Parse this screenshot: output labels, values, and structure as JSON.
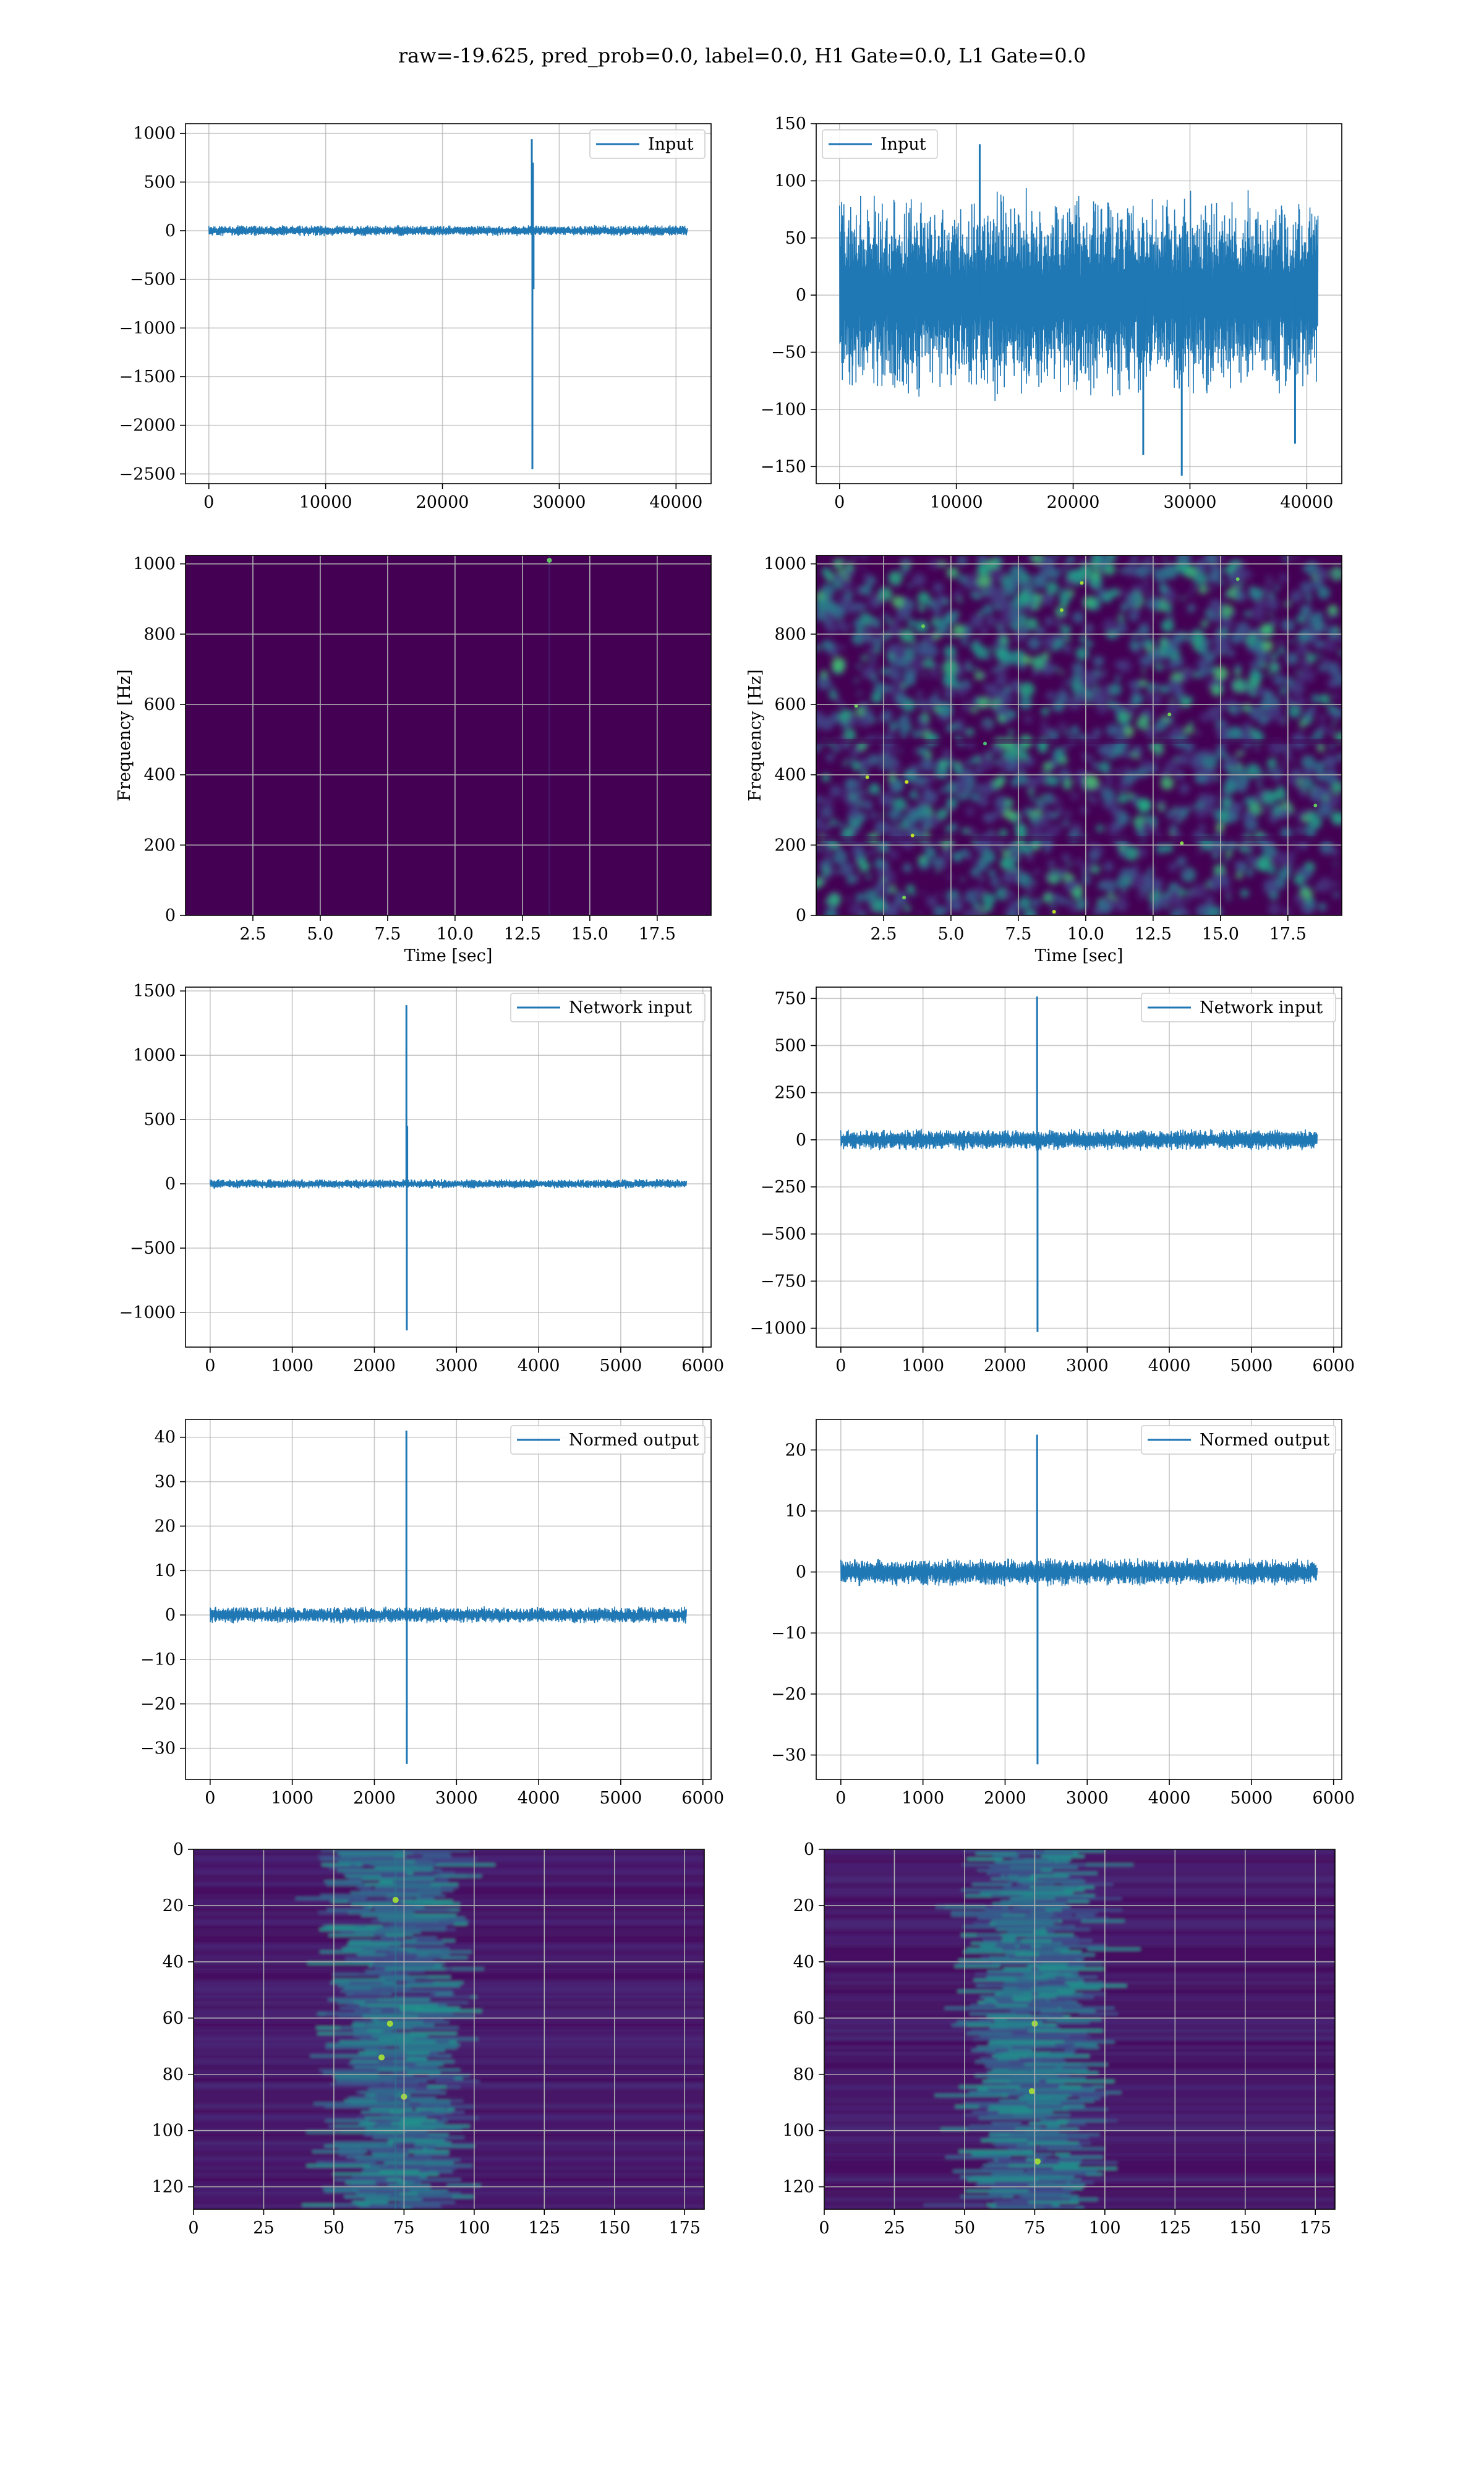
{
  "figure": {
    "title": "raw=-19.625, pred_prob=0.0, label=0.0, H1 Gate=0.0, L1 Gate=0.0"
  },
  "colors": {
    "series_blue": "#1f77b4",
    "grid": "#b0b0b0",
    "viridis_dark": "#440154",
    "viridis_mid": "#21918c",
    "viridis_bright": "#5ec962"
  },
  "chart_data": [
    {
      "type": "line",
      "id": "h1-input",
      "title": "",
      "xlabel": "",
      "ylabel": "",
      "xlim": [
        -2000,
        43000
      ],
      "ylim": [
        -2600,
        1100
      ],
      "xticks": [
        0,
        10000,
        20000,
        30000,
        40000
      ],
      "yticks": [
        1000,
        500,
        0,
        -500,
        -1000,
        -1500,
        -2000,
        -2500
      ],
      "legend": "top-right",
      "series": [
        {
          "name": "Input",
          "noise_amp": 60,
          "x_range": [
            0,
            40960
          ],
          "spikes": [
            {
              "x": 27650,
              "y": 940
            },
            {
              "x": 27700,
              "y": -2450
            },
            {
              "x": 27750,
              "y": 700
            },
            {
              "x": 27800,
              "y": -600
            }
          ]
        }
      ]
    },
    {
      "type": "line",
      "id": "l1-input",
      "title": "",
      "xlabel": "",
      "ylabel": "",
      "xlim": [
        -2000,
        43000
      ],
      "ylim": [
        -165,
        150
      ],
      "xticks": [
        0,
        10000,
        20000,
        30000,
        40000
      ],
      "yticks": [
        150,
        100,
        50,
        0,
        -50,
        -100,
        -150
      ],
      "legend": "top-left",
      "series": [
        {
          "name": "Input",
          "noise_amp": 95,
          "x_range": [
            0,
            40960
          ],
          "spikes": [
            {
              "x": 29300,
              "y": -158
            },
            {
              "x": 12000,
              "y": 132
            },
            {
              "x": 26000,
              "y": -140
            },
            {
              "x": 39000,
              "y": -130
            }
          ]
        }
      ]
    },
    {
      "type": "heatmap",
      "id": "h1-spectrogram",
      "title": "",
      "xlabel": "Time [sec]",
      "ylabel": "Frequency [Hz]",
      "xlim": [
        0,
        19.5
      ],
      "ylim": [
        0,
        1024
      ],
      "xticks": [
        2.5,
        5.0,
        7.5,
        10.0,
        12.5,
        15.0,
        17.5
      ],
      "yticks": [
        0,
        200,
        400,
        600,
        800,
        1000
      ],
      "texture": "flat",
      "hot_spots": [
        {
          "x": 13.5,
          "y": 1010
        }
      ]
    },
    {
      "type": "heatmap",
      "id": "l1-spectrogram",
      "title": "",
      "xlabel": "Time [sec]",
      "ylabel": "Frequency [Hz]",
      "xlim": [
        0,
        19.5
      ],
      "ylim": [
        0,
        1024
      ],
      "xticks": [
        2.5,
        5.0,
        7.5,
        10.0,
        12.5,
        15.0,
        17.5
      ],
      "yticks": [
        0,
        200,
        400,
        600,
        800,
        1000
      ],
      "texture": "noisy",
      "hot_spots": []
    },
    {
      "type": "line",
      "id": "h1-network-input",
      "title": "",
      "xlabel": "",
      "ylabel": "",
      "xlim": [
        -300,
        6100
      ],
      "ylim": [
        -1270,
        1530
      ],
      "xticks": [
        0,
        1000,
        2000,
        3000,
        4000,
        5000,
        6000
      ],
      "yticks": [
        1500,
        1000,
        500,
        0,
        -500,
        -1000
      ],
      "legend": "top-right",
      "series": [
        {
          "name": "Network input",
          "noise_amp": 40,
          "x_range": [
            0,
            5800
          ],
          "spikes": [
            {
              "x": 2390,
              "y": 1390
            },
            {
              "x": 2395,
              "y": -1140
            },
            {
              "x": 2400,
              "y": 450
            }
          ]
        }
      ]
    },
    {
      "type": "line",
      "id": "l1-network-input",
      "title": "",
      "xlabel": "",
      "ylabel": "",
      "xlim": [
        -300,
        6100
      ],
      "ylim": [
        -1100,
        810
      ],
      "xticks": [
        0,
        1000,
        2000,
        3000,
        4000,
        5000,
        6000
      ],
      "yticks": [
        750,
        500,
        250,
        0,
        -250,
        -500,
        -750,
        -1000
      ],
      "legend": "top-right",
      "series": [
        {
          "name": "Network input",
          "noise_amp": 60,
          "x_range": [
            0,
            5800
          ],
          "spikes": [
            {
              "x": 2390,
              "y": 760
            },
            {
              "x": 2395,
              "y": -1020
            }
          ]
        }
      ]
    },
    {
      "type": "line",
      "id": "h1-normed-output",
      "title": "",
      "xlabel": "",
      "ylabel": "",
      "xlim": [
        -300,
        6100
      ],
      "ylim": [
        -37,
        44
      ],
      "xticks": [
        0,
        1000,
        2000,
        3000,
        4000,
        5000,
        6000
      ],
      "yticks": [
        40,
        30,
        20,
        10,
        0,
        -10,
        -20,
        -30
      ],
      "legend": "top-right",
      "series": [
        {
          "name": "Normed output",
          "noise_amp": 2.0,
          "x_range": [
            0,
            5800
          ],
          "spikes": [
            {
              "x": 2390,
              "y": 41.5
            },
            {
              "x": 2395,
              "y": -33.5
            }
          ]
        }
      ]
    },
    {
      "type": "line",
      "id": "l1-normed-output",
      "title": "",
      "xlabel": "",
      "ylabel": "",
      "xlim": [
        -300,
        6100
      ],
      "ylim": [
        -34,
        25
      ],
      "xticks": [
        0,
        1000,
        2000,
        3000,
        4000,
        5000,
        6000
      ],
      "yticks": [
        20,
        10,
        0,
        -10,
        -20,
        -30
      ],
      "legend": "top-right",
      "series": [
        {
          "name": "Normed output",
          "noise_amp": 2.4,
          "x_range": [
            0,
            5800
          ],
          "spikes": [
            {
              "x": 2390,
              "y": 22.5
            },
            {
              "x": 2395,
              "y": -31.5
            }
          ]
        }
      ]
    },
    {
      "type": "heatmap",
      "id": "h1-feature-map",
      "title": "",
      "xlabel": "",
      "ylabel": "",
      "xlim": [
        0,
        182
      ],
      "ylim": [
        128,
        0
      ],
      "xticks": [
        0,
        25,
        50,
        75,
        100,
        125,
        150,
        175
      ],
      "yticks": [
        0,
        20,
        40,
        60,
        80,
        100,
        120
      ],
      "texture": "band",
      "band_center": 72,
      "hot_spots": [
        {
          "x": 72,
          "y": 18
        },
        {
          "x": 70,
          "y": 62
        },
        {
          "x": 67,
          "y": 74
        },
        {
          "x": 75,
          "y": 88
        }
      ]
    },
    {
      "type": "heatmap",
      "id": "l1-feature-map",
      "title": "",
      "xlabel": "",
      "ylabel": "",
      "xlim": [
        0,
        182
      ],
      "ylim": [
        128,
        0
      ],
      "xticks": [
        0,
        25,
        50,
        75,
        100,
        125,
        150,
        175
      ],
      "yticks": [
        0,
        20,
        40,
        60,
        80,
        100,
        120
      ],
      "texture": "band",
      "band_center": 75,
      "hot_spots": [
        {
          "x": 75,
          "y": 62
        },
        {
          "x": 74,
          "y": 86
        },
        {
          "x": 76,
          "y": 111
        }
      ]
    }
  ]
}
